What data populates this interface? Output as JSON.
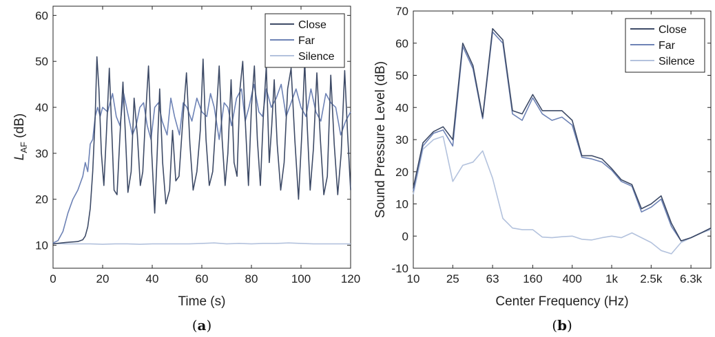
{
  "chart_data": [
    {
      "type": "line",
      "panel_label": "a",
      "xlabel": "Time (s)",
      "ylabel_main": "L",
      "ylabel_sub": "AF",
      "ylabel_unit": " (dB)",
      "xlim": [
        0,
        120
      ],
      "ylim": [
        5,
        62
      ],
      "xticks": [
        0,
        20,
        40,
        60,
        80,
        100,
        120
      ],
      "yticks": [
        10,
        20,
        30,
        40,
        50,
        60
      ],
      "legend": "top-right",
      "series": [
        {
          "name": "Close",
          "color": "#3d4a66",
          "x": [
            0,
            5,
            10,
            12,
            13,
            14,
            15,
            16,
            17,
            17.7,
            18.5,
            19.5,
            20.5,
            21.5,
            22.7,
            23.6,
            24.6,
            25.8,
            27,
            28.2,
            29.2,
            30.2,
            31.5,
            32.7,
            34,
            35.2,
            36.2,
            37.2,
            38.5,
            39.8,
            41,
            42,
            43,
            44.2,
            45.5,
            47,
            48.2,
            49.5,
            50.8,
            52.3,
            53.8,
            55.2,
            56.5,
            58,
            59.4,
            60.5,
            61.7,
            63,
            64.4,
            65.8,
            67,
            68.2,
            69.4,
            70.5,
            71.8,
            73,
            74.2,
            75.4,
            76.5,
            77.6,
            78.8,
            80,
            81.2,
            82.4,
            83.6,
            84.8,
            86,
            87.2,
            88.2,
            89.2,
            90.4,
            91.8,
            93.2,
            94.6,
            96,
            97.5,
            99,
            100.3,
            101.5,
            102.5,
            103.7,
            105,
            106.4,
            107.8,
            109.2,
            110.6,
            112,
            113.4,
            114.8,
            116.2,
            117.6,
            118.8,
            120
          ],
          "y": [
            10.3,
            10.6,
            10.8,
            11.2,
            12,
            14,
            18,
            26,
            38,
            51,
            44,
            30,
            23,
            34,
            48.5,
            36,
            22,
            21,
            34,
            45.5,
            34,
            21.5,
            26,
            42,
            34,
            23,
            26,
            37,
            49,
            30,
            17,
            30,
            44,
            28,
            19,
            22,
            35,
            24,
            25,
            37,
            47.5,
            32,
            22,
            26,
            35,
            50.5,
            33,
            23,
            26,
            38,
            49,
            33,
            23,
            30,
            46,
            28,
            25,
            44,
            50,
            36,
            23,
            40,
            49,
            33,
            23,
            38,
            49,
            28,
            36,
            46,
            32,
            22,
            28,
            44,
            48.5,
            33,
            20,
            34,
            50,
            36,
            22,
            31,
            47.5,
            33,
            21,
            25,
            47,
            32,
            21,
            30,
            48,
            34,
            22
          ]
        },
        {
          "name": "Far",
          "color": "#6d82b5",
          "x": [
            0,
            2,
            4,
            6,
            8,
            10,
            12,
            13,
            14,
            15,
            16,
            17,
            18,
            19,
            20,
            22,
            24,
            25.5,
            27,
            28.5,
            30,
            32,
            33.5,
            35,
            36.5,
            38,
            39.5,
            41,
            42.5,
            44,
            46,
            47.5,
            49,
            51,
            52.5,
            54,
            56,
            58,
            60,
            62,
            63.5,
            65,
            67,
            69,
            70.5,
            72,
            74,
            76,
            77.5,
            79,
            81,
            83,
            84.5,
            86,
            88,
            90,
            92,
            94,
            96,
            98,
            100,
            102,
            104,
            106,
            108,
            110,
            112,
            114,
            116,
            118,
            120
          ],
          "y": [
            10.5,
            11,
            13,
            17,
            20,
            22,
            25,
            28,
            26,
            32,
            33,
            38,
            40,
            38,
            40,
            39,
            43,
            38,
            36,
            43,
            39,
            34,
            36,
            40,
            41,
            36,
            33,
            40,
            41,
            37,
            34,
            42,
            38,
            34,
            41,
            40,
            37,
            42,
            39,
            38,
            43,
            40,
            33,
            41,
            40,
            36,
            42,
            44,
            37,
            40,
            45,
            39,
            38,
            44,
            40,
            42,
            45,
            38,
            41,
            44,
            40,
            38,
            44,
            39,
            37,
            43,
            41,
            40,
            34,
            37,
            39
          ]
        },
        {
          "name": "Silence",
          "color": "#b3c2dd",
          "x": [
            0,
            5,
            10,
            15,
            20,
            25,
            30,
            35,
            40,
            45,
            50,
            55,
            60,
            65,
            70,
            75,
            80,
            85,
            90,
            95,
            100,
            105,
            110,
            115,
            120
          ],
          "y": [
            10.4,
            10.3,
            10.3,
            10.3,
            10.2,
            10.3,
            10.3,
            10.2,
            10.3,
            10.3,
            10.3,
            10.3,
            10.4,
            10.5,
            10.3,
            10.4,
            10.3,
            10.4,
            10.4,
            10.5,
            10.4,
            10.3,
            10.3,
            10.3,
            10.3
          ]
        }
      ]
    },
    {
      "type": "line",
      "panel_label": "b",
      "xlabel": "Center Frequency (Hz)",
      "ylabel": "Sound Pressure Level (dB)",
      "xscale": "log",
      "xlim": [
        10,
        10000
      ],
      "ylim": [
        -10,
        70
      ],
      "xticks": [
        10,
        25,
        63,
        160,
        400,
        1000,
        2500,
        6300
      ],
      "xtick_labels": [
        "10",
        "25",
        "63",
        "160",
        "400",
        "1k",
        "2.5k",
        "6.3k"
      ],
      "yticks": [
        -10,
        0,
        10,
        20,
        30,
        40,
        50,
        60,
        70
      ],
      "legend": "top-right",
      "x": [
        10,
        12.5,
        16,
        20,
        25,
        31.5,
        40,
        50,
        63,
        80,
        100,
        125,
        160,
        200,
        250,
        315,
        400,
        500,
        630,
        800,
        1000,
        1250,
        1600,
        2000,
        2500,
        3150,
        4000,
        5000,
        6300,
        8000,
        10000
      ],
      "series": [
        {
          "name": "Close",
          "color": "#3d4a66",
          "values": [
            15,
            29,
            32.5,
            34,
            30,
            60,
            53,
            37,
            64.5,
            61,
            39,
            38,
            44,
            39,
            39,
            39,
            36,
            25,
            25,
            24,
            21,
            17.5,
            16,
            8.5,
            10,
            12.5,
            4,
            -1.5,
            -0.5,
            1,
            2.5
          ]
        },
        {
          "name": "Far",
          "color": "#6d82b5",
          "values": [
            14,
            28,
            32,
            33,
            28,
            59,
            52,
            36.5,
            63.5,
            60,
            38,
            36,
            43,
            38,
            36,
            37,
            34.5,
            24.5,
            24,
            23,
            20.5,
            17,
            15.5,
            7.5,
            9,
            11.5,
            3,
            -1.5,
            -0.5,
            1,
            2.5
          ]
        },
        {
          "name": "Silence",
          "color": "#b3c2dd",
          "values": [
            13,
            27,
            30,
            31,
            17,
            22,
            23,
            26.5,
            18,
            5.5,
            2.5,
            2,
            2,
            -0.3,
            -0.5,
            -0.2,
            0,
            -1,
            -1.2,
            -0.5,
            0,
            -0.5,
            1,
            -0.5,
            -2,
            -4.5,
            -5.5,
            -2,
            -0.5,
            1,
            2
          ]
        }
      ]
    }
  ]
}
